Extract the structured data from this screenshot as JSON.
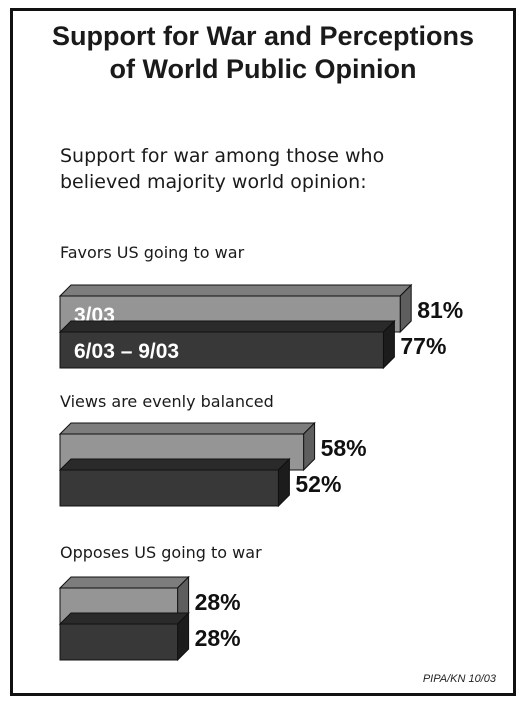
{
  "title_lines": [
    "Support for War and Perceptions",
    "of World Public Opinion"
  ],
  "subtitle_lines": [
    "Support for war among those who",
    "believed majority world opinion:"
  ],
  "source": "PIPA/KN 10/03",
  "colors": {
    "light_front": "#959595",
    "light_top": "#7d7d7d",
    "light_side": "#5e5e5e",
    "dark_front": "#383838",
    "dark_top": "#2a2a2a",
    "dark_side": "#1c1c1c",
    "stroke": "#111111"
  },
  "chart_data": {
    "type": "bar",
    "orientation": "horizontal",
    "style": "3d",
    "categories": [
      "Favors US going to war",
      "Views are evenly balanced",
      "Opposes US going to war"
    ],
    "series": [
      {
        "name": "3/03",
        "values": [
          81,
          58,
          28
        ]
      },
      {
        "name": "6/03 – 9/03",
        "values": [
          77,
          52,
          28
        ]
      }
    ],
    "value_suffix": "%",
    "legend": "inside-bars"
  }
}
